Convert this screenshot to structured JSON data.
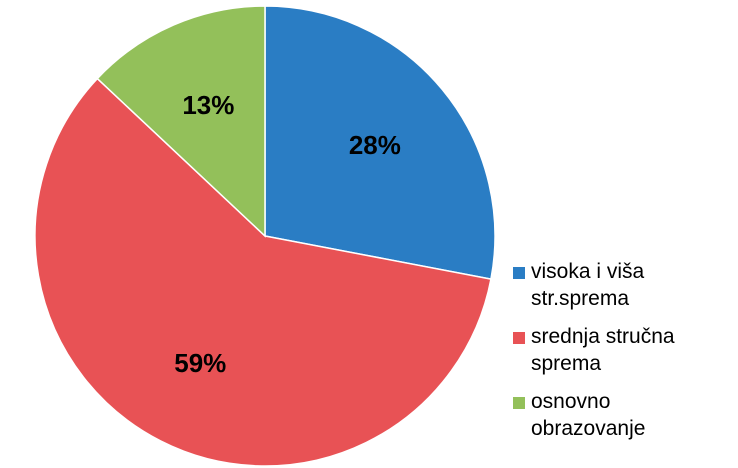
{
  "chart_data": {
    "type": "pie",
    "categories": [
      "visoka i viša str.sprema",
      "srednja stručna sprema",
      "osnovno obrazovanje"
    ],
    "values": [
      28,
      59,
      13
    ],
    "data_labels": [
      "28%",
      "59%",
      "13%"
    ],
    "colors": [
      "#2a7dc4",
      "#e85255",
      "#93c05a"
    ],
    "start_angle_deg": 0,
    "direction": "clockwise",
    "legend_placement": "right",
    "legend": [
      {
        "lines": [
          "visoka i viša",
          "str.sprema"
        ]
      },
      {
        "lines": [
          "srednja stručna",
          "sprema"
        ]
      },
      {
        "lines": [
          "osnovno",
          "obrazovanje"
        ]
      }
    ]
  }
}
